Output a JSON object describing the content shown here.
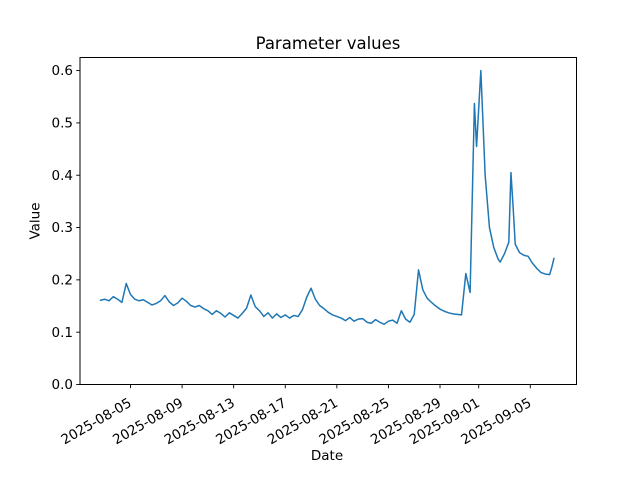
{
  "figure": {
    "background": "#ffffff"
  },
  "chart_data": {
    "type": "line",
    "title": "Parameter values",
    "xlabel": "Date",
    "ylabel": "Value",
    "line_color": "#1f77b4",
    "axis_color": "#000000",
    "legend": "none",
    "grid": false,
    "xlim": [
      "2025-08-01T02:00",
      "2025-09-08T14:00"
    ],
    "ylim": [
      0,
      0.625
    ],
    "xticks": [
      "2025-08-05",
      "2025-08-09",
      "2025-08-13",
      "2025-08-17",
      "2025-08-21",
      "2025-08-25",
      "2025-08-29",
      "2025-09-01",
      "2025-09-05"
    ],
    "yticks": [
      0,
      0.1,
      0.2,
      0.3,
      0.4,
      0.5,
      0.6
    ],
    "series": [
      {
        "name": "parameter-values",
        "points": [
          [
            "2025-08-02T16:00",
            0.161
          ],
          [
            "2025-08-03T00:00",
            0.163
          ],
          [
            "2025-08-03T08:00",
            0.16
          ],
          [
            "2025-08-03T16:00",
            0.168
          ],
          [
            "2025-08-04T00:00",
            0.163
          ],
          [
            "2025-08-04T08:00",
            0.157
          ],
          [
            "2025-08-04T16:00",
            0.193
          ],
          [
            "2025-08-05T00:00",
            0.172
          ],
          [
            "2025-08-05T08:00",
            0.163
          ],
          [
            "2025-08-05T16:00",
            0.16
          ],
          [
            "2025-08-06T00:00",
            0.162
          ],
          [
            "2025-08-06T08:00",
            0.157
          ],
          [
            "2025-08-06T16:00",
            0.152
          ],
          [
            "2025-08-07T00:00",
            0.155
          ],
          [
            "2025-08-07T08:00",
            0.16
          ],
          [
            "2025-08-07T16:00",
            0.17
          ],
          [
            "2025-08-08T00:00",
            0.158
          ],
          [
            "2025-08-08T08:00",
            0.151
          ],
          [
            "2025-08-08T16:00",
            0.156
          ],
          [
            "2025-08-09T00:00",
            0.165
          ],
          [
            "2025-08-09T08:00",
            0.159
          ],
          [
            "2025-08-09T16:00",
            0.151
          ],
          [
            "2025-08-10T00:00",
            0.148
          ],
          [
            "2025-08-10T08:00",
            0.151
          ],
          [
            "2025-08-10T16:00",
            0.145
          ],
          [
            "2025-08-11T00:00",
            0.141
          ],
          [
            "2025-08-11T08:00",
            0.134
          ],
          [
            "2025-08-11T16:00",
            0.141
          ],
          [
            "2025-08-12T00:00",
            0.136
          ],
          [
            "2025-08-12T08:00",
            0.129
          ],
          [
            "2025-08-12T16:00",
            0.137
          ],
          [
            "2025-08-13T00:00",
            0.132
          ],
          [
            "2025-08-13T08:00",
            0.127
          ],
          [
            "2025-08-13T16:00",
            0.136
          ],
          [
            "2025-08-14T00:00",
            0.146
          ],
          [
            "2025-08-14T08:00",
            0.171
          ],
          [
            "2025-08-14T16:00",
            0.149
          ],
          [
            "2025-08-15T00:00",
            0.141
          ],
          [
            "2025-08-15T08:00",
            0.13
          ],
          [
            "2025-08-15T16:00",
            0.137
          ],
          [
            "2025-08-16T00:00",
            0.127
          ],
          [
            "2025-08-16T08:00",
            0.135
          ],
          [
            "2025-08-16T16:00",
            0.128
          ],
          [
            "2025-08-17T00:00",
            0.133
          ],
          [
            "2025-08-17T08:00",
            0.127
          ],
          [
            "2025-08-17T16:00",
            0.132
          ],
          [
            "2025-08-18T00:00",
            0.13
          ],
          [
            "2025-08-18T08:00",
            0.143
          ],
          [
            "2025-08-18T16:00",
            0.167
          ],
          [
            "2025-08-19T00:00",
            0.184
          ],
          [
            "2025-08-19T08:00",
            0.163
          ],
          [
            "2025-08-19T16:00",
            0.151
          ],
          [
            "2025-08-20T00:00",
            0.145
          ],
          [
            "2025-08-20T08:00",
            0.138
          ],
          [
            "2025-08-20T16:00",
            0.133
          ],
          [
            "2025-08-21T00:00",
            0.13
          ],
          [
            "2025-08-21T08:00",
            0.127
          ],
          [
            "2025-08-21T16:00",
            0.122
          ],
          [
            "2025-08-22T00:00",
            0.128
          ],
          [
            "2025-08-22T08:00",
            0.121
          ],
          [
            "2025-08-22T16:00",
            0.125
          ],
          [
            "2025-08-23T00:00",
            0.126
          ],
          [
            "2025-08-23T08:00",
            0.119
          ],
          [
            "2025-08-23T16:00",
            0.117
          ],
          [
            "2025-08-24T00:00",
            0.124
          ],
          [
            "2025-08-24T08:00",
            0.119
          ],
          [
            "2025-08-24T16:00",
            0.115
          ],
          [
            "2025-08-25T00:00",
            0.121
          ],
          [
            "2025-08-25T08:00",
            0.123
          ],
          [
            "2025-08-25T16:00",
            0.117
          ],
          [
            "2025-08-26T00:00",
            0.141
          ],
          [
            "2025-08-26T08:00",
            0.125
          ],
          [
            "2025-08-26T16:00",
            0.119
          ],
          [
            "2025-08-27T00:00",
            0.134
          ],
          [
            "2025-08-27T08:00",
            0.219
          ],
          [
            "2025-08-27T16:00",
            0.181
          ],
          [
            "2025-08-28T00:00",
            0.165
          ],
          [
            "2025-08-28T08:00",
            0.157
          ],
          [
            "2025-08-28T16:00",
            0.15
          ],
          [
            "2025-08-29T00:00",
            0.144
          ],
          [
            "2025-08-29T08:00",
            0.14
          ],
          [
            "2025-08-29T16:00",
            0.137
          ],
          [
            "2025-08-30T00:00",
            0.135
          ],
          [
            "2025-08-30T08:00",
            0.134
          ],
          [
            "2025-08-30T16:00",
            0.133
          ],
          [
            "2025-08-31T00:00",
            0.212
          ],
          [
            "2025-08-31T08:00",
            0.176
          ],
          [
            "2025-08-31T16:00",
            0.537
          ],
          [
            "2025-08-31T20:00",
            0.455
          ],
          [
            "2025-09-01T04:00",
            0.6
          ],
          [
            "2025-09-01T12:00",
            0.4
          ],
          [
            "2025-09-01T20:00",
            0.3
          ],
          [
            "2025-09-02T04:00",
            0.262
          ],
          [
            "2025-09-02T12:00",
            0.24
          ],
          [
            "2025-09-02T16:00",
            0.234
          ],
          [
            "2025-09-03T00:00",
            0.25
          ],
          [
            "2025-09-03T08:00",
            0.272
          ],
          [
            "2025-09-03T12:00",
            0.405
          ],
          [
            "2025-09-03T16:00",
            0.34
          ],
          [
            "2025-09-03T20:00",
            0.268
          ],
          [
            "2025-09-04T04:00",
            0.252
          ],
          [
            "2025-09-04T12:00",
            0.247
          ],
          [
            "2025-09-04T20:00",
            0.245
          ],
          [
            "2025-09-05T04:00",
            0.232
          ],
          [
            "2025-09-05T12:00",
            0.222
          ],
          [
            "2025-09-05T20:00",
            0.214
          ],
          [
            "2025-09-06T04:00",
            0.211
          ],
          [
            "2025-09-06T12:00",
            0.21
          ],
          [
            "2025-09-06T16:00",
            0.224
          ],
          [
            "2025-09-06T20:00",
            0.241
          ]
        ]
      }
    ]
  }
}
